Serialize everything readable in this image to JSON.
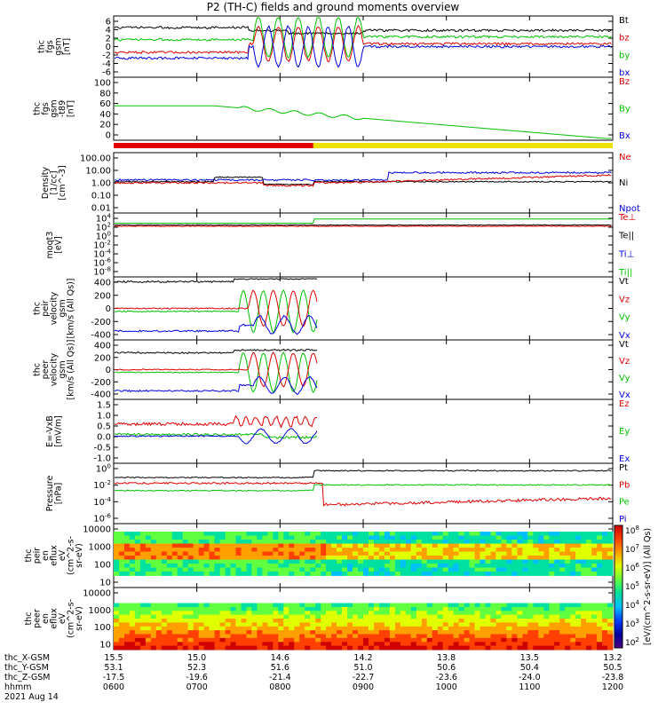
{
  "title": "P2 (TH-C) fields and ground moments overview",
  "colors": {
    "black": "#000000",
    "red": "#e00000",
    "green": "#00c000",
    "blue": "#0000e0",
    "yellow": "#f0e000"
  },
  "mode_bar": {
    "colors": [
      "red",
      "yellow"
    ],
    "switch_fraction": 0.4
  },
  "chart_data": [
    {
      "type": "line",
      "ylabel": [
        "thc",
        "fgs",
        "gsm",
        "[nT]"
      ],
      "ylim": [
        -6,
        6
      ],
      "yticks": [
        "6",
        "4",
        "2",
        "0",
        "-2",
        "-4",
        "-6"
      ],
      "legend": [
        "Bt",
        "bz",
        "by",
        "bx"
      ],
      "legend_colors": [
        "black",
        "red",
        "green",
        "blue"
      ]
    },
    {
      "type": "line",
      "ylabel": [
        "thc",
        "fgs",
        "gsm",
        "-t89",
        "[nT]"
      ],
      "ylim": [
        -10,
        100
      ],
      "yticks": [
        "100",
        "80",
        "60",
        "40",
        "20",
        "0"
      ],
      "legend": [
        "Bz",
        "By",
        "Bx"
      ],
      "legend_colors": [
        "red",
        "green",
        "blue"
      ]
    },
    {
      "type": "line",
      "ylabel": [
        "Density",
        "[1/cc]",
        "[cm^-3]"
      ],
      "yscale": "log",
      "yticks": [
        "100.00",
        "10.00",
        "1.00",
        "0.10",
        "0.01"
      ],
      "legend": [
        "Ne",
        "Ni",
        "Npot"
      ],
      "legend_colors": [
        "red",
        "black",
        "blue"
      ]
    },
    {
      "type": "line",
      "ylabel": [
        "moqt3",
        "[eV]"
      ],
      "yscale": "log",
      "yticks": [
        "10^4",
        "10^2",
        "10^0",
        "10^-2",
        "10^-4",
        "10^-6",
        "10^-8"
      ],
      "legend": [
        "Te⊥",
        "Te||",
        "Ti⊥",
        "Ti||"
      ],
      "legend_colors": [
        "red",
        "black",
        "blue",
        "green"
      ]
    },
    {
      "type": "line",
      "ylabel": [
        "thc",
        "peir",
        "velocity",
        "gsm",
        "[km/s (All Qs)]"
      ],
      "ylim": [
        -400,
        400
      ],
      "yticks": [
        "400",
        "200",
        "0",
        "-200",
        "-400"
      ],
      "legend": [
        "Vt",
        "Vz",
        "Vy",
        "Vx"
      ],
      "legend_colors": [
        "black",
        "red",
        "green",
        "blue"
      ]
    },
    {
      "type": "line",
      "ylabel": [
        "thc",
        "peer",
        "velocity",
        "gsm",
        "[km/s (All Qs)]"
      ],
      "ylim": [
        -400,
        400
      ],
      "yticks": [
        "400",
        "200",
        "0",
        "-200",
        "-400"
      ],
      "legend": [
        "Vt",
        "Vz",
        "Vy",
        "Vx"
      ],
      "legend_colors": [
        "black",
        "red",
        "green",
        "blue"
      ]
    },
    {
      "type": "line",
      "ylabel": [
        "E=-VxB",
        "[mV/m]"
      ],
      "ylim": [
        -1.0,
        1.5
      ],
      "yticks": [
        "1.5",
        "1.0",
        "0.5",
        "0.0",
        "-0.5",
        "-1.0"
      ],
      "legend": [
        "Ez",
        "Ey",
        "Ex"
      ],
      "legend_colors": [
        "red",
        "green",
        "blue"
      ]
    },
    {
      "type": "line",
      "ylabel": [
        "Pressure",
        "[nPa]"
      ],
      "yscale": "log",
      "yticks": [
        "10^0",
        "10^-2",
        "10^-4",
        "10^-6"
      ],
      "legend": [
        "Pt",
        "Pb",
        "Pe",
        "Pi"
      ],
      "legend_colors": [
        "black",
        "red",
        "green",
        "blue"
      ]
    },
    {
      "type": "heatmap",
      "ylabel": [
        "thc",
        "peir",
        "en",
        "eflux",
        "eV",
        "(cm^2-s-",
        "sr-eV)"
      ],
      "yscale": "log",
      "yticks": [
        "10000",
        "1000",
        "100",
        "10"
      ],
      "colorbar_label": "[eV/(cm^2-s-sr-eV)] (All Qs)",
      "colorbar_ticks": [
        "10^8",
        "10^7",
        "10^6",
        "10^5",
        "10^4",
        "10^3",
        "10^2"
      ]
    },
    {
      "type": "heatmap",
      "ylabel": [
        "thc",
        "peer",
        "en",
        "eflux",
        "eV",
        "(cm^2-s-",
        "sr-eV)"
      ],
      "yscale": "log",
      "yticks": [
        "10000",
        "1000",
        "100",
        "10"
      ],
      "colorbar_label": "[eV/(cm^2-s-sr-eV)] (All Qs)",
      "colorbar_ticks": [
        "10^8",
        "10^7",
        "10^6",
        "10^5",
        "10^4",
        "10^3",
        "10^2"
      ]
    }
  ],
  "x_axis": {
    "row_labels": [
      "thc_X-GSM",
      "thc_Y-GSM",
      "thc_Z-GSM",
      "hhmm",
      "2021 Aug 14"
    ],
    "columns": [
      [
        "15.5",
        "53.1",
        "-17.5",
        "0600"
      ],
      [
        "15.0",
        "52.3",
        "-19.6",
        "0700"
      ],
      [
        "14.6",
        "51.6",
        "-21.4",
        "0800"
      ],
      [
        "14.2",
        "51.0",
        "-22.7",
        "0900"
      ],
      [
        "13.8",
        "50.6",
        "-23.6",
        "1000"
      ],
      [
        "13.5",
        "50.4",
        "-24.0",
        "1100"
      ],
      [
        "13.2",
        "50.5",
        "-23.8",
        "1200"
      ]
    ]
  }
}
